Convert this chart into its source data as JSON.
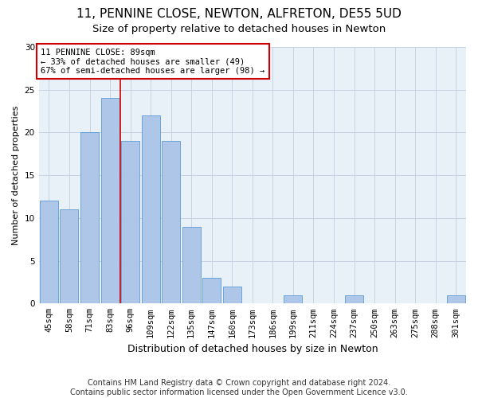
{
  "title_line1": "11, PENNINE CLOSE, NEWTON, ALFRETON, DE55 5UD",
  "title_line2": "Size of property relative to detached houses in Newton",
  "xlabel": "Distribution of detached houses by size in Newton",
  "ylabel": "Number of detached properties",
  "categories": [
    "45sqm",
    "58sqm",
    "71sqm",
    "83sqm",
    "96sqm",
    "109sqm",
    "122sqm",
    "135sqm",
    "147sqm",
    "160sqm",
    "173sqm",
    "186sqm",
    "199sqm",
    "211sqm",
    "224sqm",
    "237sqm",
    "250sqm",
    "263sqm",
    "275sqm",
    "288sqm",
    "301sqm"
  ],
  "values": [
    12,
    11,
    20,
    24,
    19,
    22,
    19,
    9,
    3,
    2,
    0,
    0,
    1,
    0,
    0,
    1,
    0,
    0,
    0,
    0,
    1
  ],
  "bar_color": "#aec6e8",
  "bar_edge_color": "#5b9bd5",
  "grid_color": "#c8d4e4",
  "background_color": "#e8f0f8",
  "vline_color": "#cc0000",
  "vline_x": 3.5,
  "annotation_text": "11 PENNINE CLOSE: 89sqm\n← 33% of detached houses are smaller (49)\n67% of semi-detached houses are larger (98) →",
  "footer_line1": "Contains HM Land Registry data © Crown copyright and database right 2024.",
  "footer_line2": "Contains public sector information licensed under the Open Government Licence v3.0.",
  "ylim": [
    0,
    30
  ],
  "yticks": [
    0,
    5,
    10,
    15,
    20,
    25,
    30
  ],
  "title_fontsize": 11,
  "subtitle_fontsize": 9.5,
  "ylabel_fontsize": 8,
  "xlabel_fontsize": 9,
  "tick_fontsize": 7.5,
  "annotation_fontsize": 7.5,
  "footer_fontsize": 7
}
